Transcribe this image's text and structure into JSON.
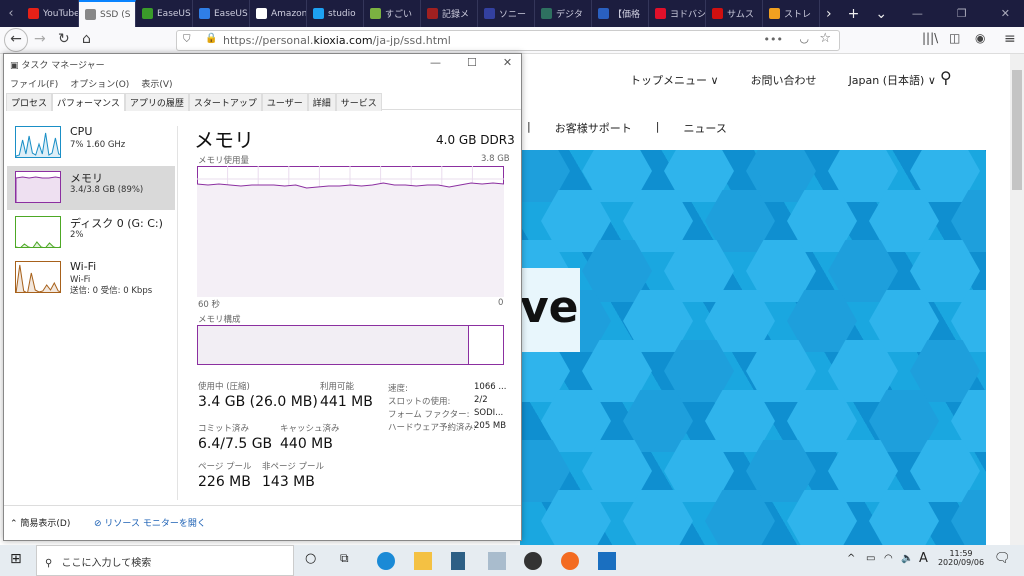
{
  "browser": {
    "tabs": [
      {
        "label": "YouTube",
        "color": "#e62117"
      },
      {
        "label": "SSD (S",
        "color": "#888",
        "active": true
      },
      {
        "label": "EaseUS",
        "color": "#3a9b2a"
      },
      {
        "label": "EaseUS",
        "color": "#2f7ee6"
      },
      {
        "label": "Amazon",
        "color": "#fff"
      },
      {
        "label": "studio",
        "color": "#1da1f2"
      },
      {
        "label": "すごい",
        "color": "#7bb241"
      },
      {
        "label": "記録メ",
        "color": "#a02020"
      },
      {
        "label": "ソニー",
        "color": "#3340a0"
      },
      {
        "label": "デジタ",
        "color": "#2e7060"
      },
      {
        "label": "【価格",
        "color": "#2a60c0"
      },
      {
        "label": "ヨドバシ",
        "color": "#e0102a"
      },
      {
        "label": "サムス",
        "color": "#d01010"
      },
      {
        "label": "ストレ",
        "color": "#f0a020"
      }
    ],
    "url_prefix": "https://personal.",
    "url_domain": "kioxia.com",
    "url_path": "/ja-jp/ssd.html"
  },
  "website": {
    "nav": [
      "トップメニュー ∨",
      "お問い合わせ",
      "Japan (日本語) ∨"
    ],
    "subnav": [
      "お客様サポート",
      "ニュース"
    ],
    "banner_text": "ve"
  },
  "task_manager": {
    "title": "タスク マネージャー",
    "menu": [
      "ファイル(F)",
      "オプション(O)",
      "表示(V)"
    ],
    "tabs": [
      "プロセス",
      "パフォーマンス",
      "アプリの履歴",
      "スタートアップ",
      "ユーザー",
      "詳細",
      "サービス"
    ],
    "active_tab": "パフォーマンス",
    "resources": [
      {
        "name": "CPU",
        "detail": "7%  1.60 GHz",
        "color": "#1a8fc6"
      },
      {
        "name": "メモリ",
        "detail": "3.4/3.8 GB (89%)",
        "color": "#8b2fa0",
        "selected": true
      },
      {
        "name": "ディスク 0 (G: C:)",
        "detail": "2%",
        "color": "#4da825"
      },
      {
        "name": "Wi-Fi",
        "detail": "Wi-Fi",
        "detail2": "送信: 0 受信: 0 Kbps",
        "color": "#a7611b"
      }
    ],
    "panel": {
      "title": "メモリ",
      "spec": "4.0 GB DDR3",
      "usage_label": "メモリ使用量",
      "usage_max": "3.8 GB",
      "time_left": "60 秒",
      "time_right": "0",
      "composition_label": "メモリ構成",
      "usage_percent": 89,
      "stats": [
        {
          "label": "使用中 (圧縮)",
          "value": "3.4 GB (26.0 MB)"
        },
        {
          "label": "利用可能",
          "value": "441 MB"
        },
        {
          "label": "コミット済み",
          "value": "6.4/7.5 GB"
        },
        {
          "label": "キャッシュ済み",
          "value": "440 MB"
        },
        {
          "label": "ページ プール",
          "value": "226 MB"
        },
        {
          "label": "非ページ プール",
          "value": "143 MB"
        }
      ],
      "props": [
        {
          "k": "速度:",
          "v": "1066 ..."
        },
        {
          "k": "スロットの使用:",
          "v": "2/2"
        },
        {
          "k": "フォーム ファクター:",
          "v": "SODI..."
        },
        {
          "k": "ハードウェア予約済み:",
          "v": "205 MB"
        }
      ]
    },
    "footer": {
      "summary": "簡易表示(D)",
      "monitor": "リソース モニターを開く"
    }
  },
  "taskbar": {
    "search_placeholder": "ここに入力して検索",
    "time": "11:59",
    "date": "2020/09/06",
    "ime": "A"
  }
}
